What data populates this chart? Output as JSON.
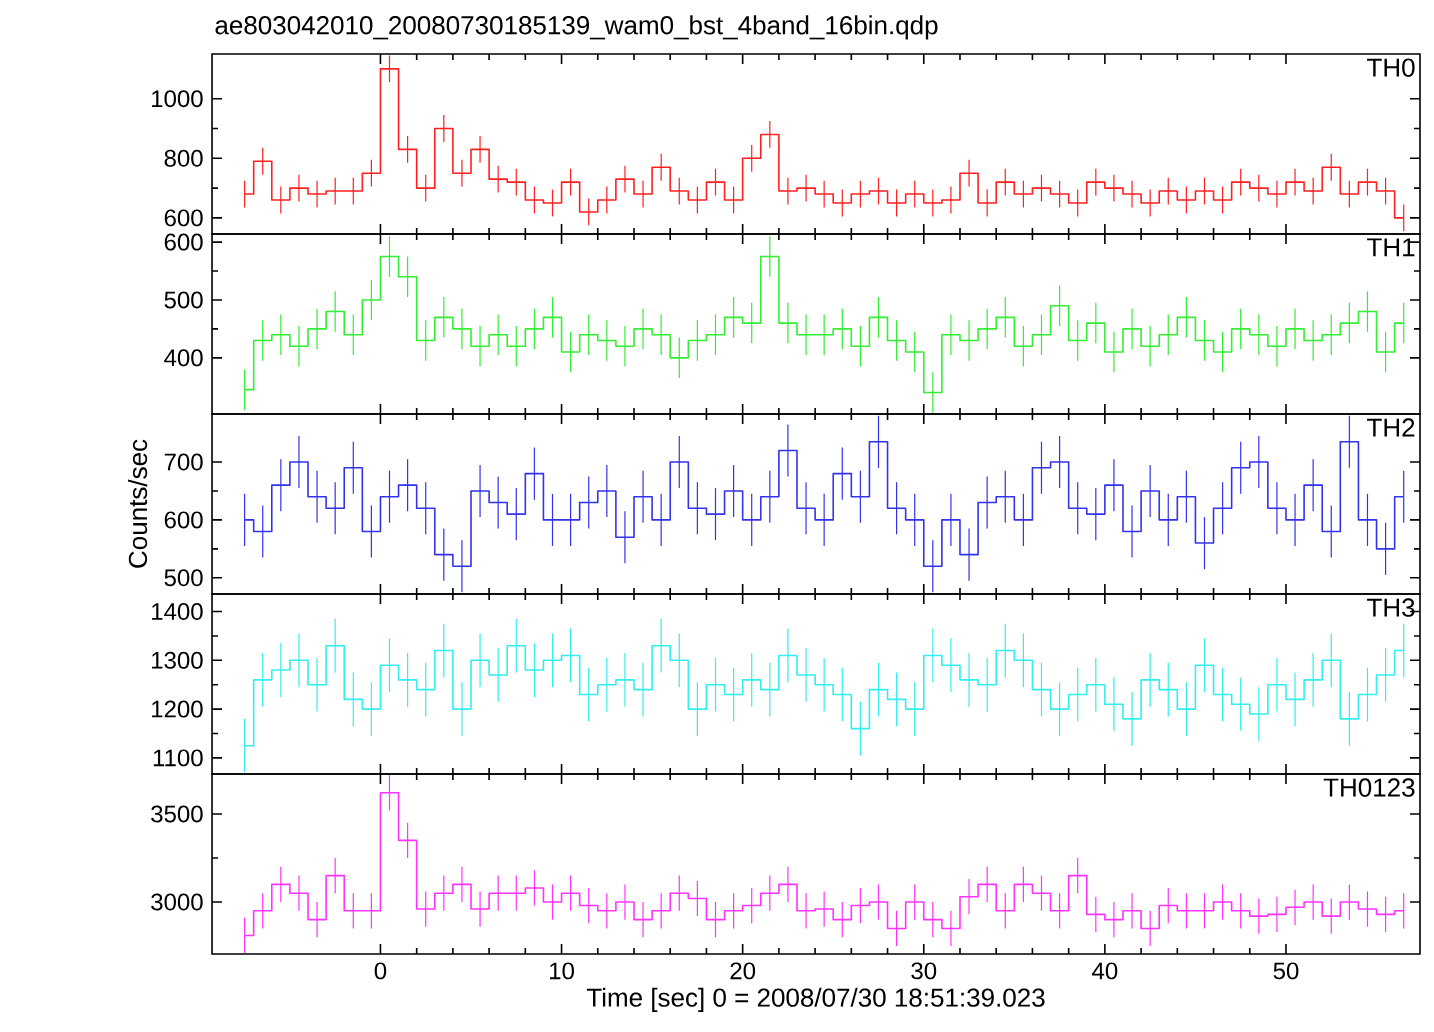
{
  "chart_data": [
    {
      "type": "step",
      "title": "ae803042010_20080730185139_wam0_bst_4band_16bin.qdp",
      "xlim": [
        -9.3,
        57.4
      ],
      "xticks": [
        0,
        10,
        20,
        30,
        40,
        50
      ],
      "ylim": [
        546,
        1150
      ],
      "yticks": [
        600,
        800,
        1000
      ],
      "tick_labels": "y",
      "x": [
        -7.5,
        -6.5,
        -5.5,
        -4.5,
        -3.5,
        -2.5,
        -1.5,
        -0.5,
        0.5,
        1.5,
        2.5,
        3.5,
        4.5,
        5.5,
        6.5,
        7.5,
        8.5,
        9.5,
        10.5,
        11.5,
        12.5,
        13.5,
        14.5,
        15.5,
        16.5,
        17.5,
        18.5,
        19.5,
        20.5,
        21.5,
        22.5,
        23.5,
        24.5,
        25.5,
        26.5,
        27.5,
        28.5,
        29.5,
        30.5,
        31.5,
        32.5,
        33.5,
        34.5,
        35.5,
        36.5,
        37.5,
        38.5,
        39.5,
        40.5,
        41.5,
        42.5,
        43.5,
        44.5,
        45.5,
        46.5,
        47.5,
        48.5,
        49.5,
        50.5,
        51.5,
        52.5,
        53.5,
        54.5,
        55.5,
        56.5
      ],
      "series": [
        {
          "name": "TH0",
          "color": "#ff2020",
          "values": [
            680,
            790,
            660,
            700,
            680,
            690,
            690,
            750,
            1100,
            830,
            700,
            900,
            750,
            830,
            730,
            720,
            660,
            650,
            720,
            620,
            660,
            730,
            680,
            770,
            690,
            660,
            720,
            660,
            800,
            880,
            690,
            700,
            680,
            650,
            680,
            690,
            650,
            680,
            650,
            660,
            750,
            650,
            720,
            680,
            700,
            680,
            650,
            720,
            700,
            680,
            650,
            690,
            660,
            690,
            660,
            720,
            700,
            680,
            720,
            690,
            770,
            680,
            720,
            690,
            600
          ],
          "errors": [
            45,
            45,
            45,
            45,
            45,
            45,
            45,
            45,
            45,
            45,
            45,
            45,
            45,
            45,
            45,
            45,
            45,
            45,
            45,
            45,
            45,
            45,
            45,
            45,
            45,
            45,
            45,
            45,
            45,
            45,
            45,
            45,
            45,
            45,
            45,
            45,
            45,
            45,
            45,
            45,
            45,
            45,
            45,
            45,
            45,
            45,
            45,
            45,
            45,
            45,
            45,
            45,
            45,
            45,
            45,
            45,
            45,
            45,
            45,
            45,
            45,
            45,
            45,
            45,
            45
          ]
        }
      ]
    },
    {
      "type": "step",
      "xlim": [
        -9.3,
        57.4
      ],
      "xticks": [
        0,
        10,
        20,
        30,
        40,
        50
      ],
      "ylim": [
        303,
        614
      ],
      "yticks": [
        400,
        500,
        600
      ],
      "tick_labels": "y",
      "x": [
        -7.5,
        -6.5,
        -5.5,
        -4.5,
        -3.5,
        -2.5,
        -1.5,
        -0.5,
        0.5,
        1.5,
        2.5,
        3.5,
        4.5,
        5.5,
        6.5,
        7.5,
        8.5,
        9.5,
        10.5,
        11.5,
        12.5,
        13.5,
        14.5,
        15.5,
        16.5,
        17.5,
        18.5,
        19.5,
        20.5,
        21.5,
        22.5,
        23.5,
        24.5,
        25.5,
        26.5,
        27.5,
        28.5,
        29.5,
        30.5,
        31.5,
        32.5,
        33.5,
        34.5,
        35.5,
        36.5,
        37.5,
        38.5,
        39.5,
        40.5,
        41.5,
        42.5,
        43.5,
        44.5,
        45.5,
        46.5,
        47.5,
        48.5,
        49.5,
        50.5,
        51.5,
        52.5,
        53.5,
        54.5,
        55.5,
        56.5
      ],
      "series": [
        {
          "name": "TH1",
          "color": "#33ee33",
          "values": [
            345,
            430,
            440,
            420,
            450,
            480,
            440,
            500,
            575,
            540,
            430,
            470,
            450,
            420,
            440,
            420,
            450,
            470,
            410,
            440,
            430,
            420,
            450,
            440,
            400,
            430,
            440,
            470,
            460,
            575,
            460,
            440,
            440,
            450,
            420,
            470,
            430,
            410,
            340,
            440,
            430,
            450,
            470,
            420,
            440,
            490,
            430,
            460,
            410,
            450,
            420,
            440,
            470,
            430,
            410,
            450,
            440,
            420,
            450,
            430,
            440,
            460,
            480,
            410,
            460
          ],
          "errors": [
            35,
            35,
            35,
            35,
            35,
            35,
            35,
            35,
            35,
            35,
            35,
            35,
            35,
            35,
            35,
            35,
            35,
            35,
            35,
            35,
            35,
            35,
            35,
            35,
            35,
            35,
            35,
            35,
            35,
            35,
            35,
            35,
            35,
            35,
            35,
            35,
            35,
            35,
            35,
            35,
            35,
            35,
            35,
            35,
            35,
            35,
            35,
            35,
            35,
            35,
            35,
            35,
            35,
            35,
            35,
            35,
            35,
            35,
            35,
            35,
            35,
            35,
            35,
            35,
            35
          ]
        }
      ]
    },
    {
      "type": "step",
      "ylabel": "Counts/sec",
      "xlim": [
        -9.3,
        57.4
      ],
      "xticks": [
        0,
        10,
        20,
        30,
        40,
        50
      ],
      "ylim": [
        472,
        783
      ],
      "yticks": [
        500,
        600,
        700
      ],
      "tick_labels": "y",
      "x": [
        -7.5,
        -6.5,
        -5.5,
        -4.5,
        -3.5,
        -2.5,
        -1.5,
        -0.5,
        0.5,
        1.5,
        2.5,
        3.5,
        4.5,
        5.5,
        6.5,
        7.5,
        8.5,
        9.5,
        10.5,
        11.5,
        12.5,
        13.5,
        14.5,
        15.5,
        16.5,
        17.5,
        18.5,
        19.5,
        20.5,
        21.5,
        22.5,
        23.5,
        24.5,
        25.5,
        26.5,
        27.5,
        28.5,
        29.5,
        30.5,
        31.5,
        32.5,
        33.5,
        34.5,
        35.5,
        36.5,
        37.5,
        38.5,
        39.5,
        40.5,
        41.5,
        42.5,
        43.5,
        44.5,
        45.5,
        46.5,
        47.5,
        48.5,
        49.5,
        50.5,
        51.5,
        52.5,
        53.5,
        54.5,
        55.5,
        56.5
      ],
      "series": [
        {
          "name": "TH2",
          "color": "#3333ee",
          "values": [
            600,
            580,
            660,
            700,
            640,
            620,
            690,
            580,
            640,
            660,
            620,
            540,
            520,
            650,
            630,
            610,
            680,
            600,
            600,
            630,
            650,
            570,
            640,
            600,
            700,
            620,
            610,
            650,
            600,
            640,
            720,
            620,
            600,
            680,
            640,
            735,
            620,
            600,
            520,
            600,
            540,
            630,
            640,
            600,
            690,
            700,
            620,
            610,
            660,
            580,
            650,
            600,
            640,
            560,
            620,
            690,
            700,
            620,
            600,
            660,
            580,
            735,
            600,
            550,
            640
          ],
          "errors": [
            45,
            45,
            45,
            45,
            45,
            45,
            45,
            45,
            45,
            45,
            45,
            45,
            45,
            45,
            45,
            45,
            45,
            45,
            45,
            45,
            45,
            45,
            45,
            45,
            45,
            45,
            45,
            45,
            45,
            45,
            45,
            45,
            45,
            45,
            45,
            45,
            45,
            45,
            45,
            45,
            45,
            45,
            45,
            45,
            45,
            45,
            45,
            45,
            45,
            45,
            45,
            45,
            45,
            45,
            45,
            45,
            45,
            45,
            45,
            45,
            45,
            45,
            45,
            45,
            45
          ]
        }
      ]
    },
    {
      "type": "step",
      "xlim": [
        -9.3,
        57.4
      ],
      "xticks": [
        0,
        10,
        20,
        30,
        40,
        50
      ],
      "ylim": [
        1067,
        1436
      ],
      "yticks": [
        1100,
        1200,
        1300,
        1400
      ],
      "tick_labels": "y",
      "x": [
        -7.5,
        -6.5,
        -5.5,
        -4.5,
        -3.5,
        -2.5,
        -1.5,
        -0.5,
        0.5,
        1.5,
        2.5,
        3.5,
        4.5,
        5.5,
        6.5,
        7.5,
        8.5,
        9.5,
        10.5,
        11.5,
        12.5,
        13.5,
        14.5,
        15.5,
        16.5,
        17.5,
        18.5,
        19.5,
        20.5,
        21.5,
        22.5,
        23.5,
        24.5,
        25.5,
        26.5,
        27.5,
        28.5,
        29.5,
        30.5,
        31.5,
        32.5,
        33.5,
        34.5,
        35.5,
        36.5,
        37.5,
        38.5,
        39.5,
        40.5,
        41.5,
        42.5,
        43.5,
        44.5,
        45.5,
        46.5,
        47.5,
        48.5,
        49.5,
        50.5,
        51.5,
        52.5,
        53.5,
        54.5,
        55.5,
        56.5
      ],
      "series": [
        {
          "name": "TH3",
          "color": "#33eeee",
          "values": [
            1125,
            1260,
            1280,
            1300,
            1250,
            1330,
            1220,
            1200,
            1290,
            1260,
            1240,
            1320,
            1200,
            1300,
            1270,
            1330,
            1280,
            1300,
            1310,
            1230,
            1250,
            1260,
            1240,
            1330,
            1300,
            1200,
            1250,
            1230,
            1260,
            1240,
            1310,
            1270,
            1250,
            1230,
            1160,
            1240,
            1220,
            1200,
            1310,
            1290,
            1260,
            1250,
            1320,
            1300,
            1240,
            1200,
            1230,
            1250,
            1210,
            1180,
            1260,
            1240,
            1200,
            1290,
            1230,
            1210,
            1190,
            1250,
            1220,
            1260,
            1300,
            1180,
            1230,
            1270,
            1320
          ],
          "errors": [
            55,
            55,
            55,
            55,
            55,
            55,
            55,
            55,
            55,
            55,
            55,
            55,
            55,
            55,
            55,
            55,
            55,
            55,
            55,
            55,
            55,
            55,
            55,
            55,
            55,
            55,
            55,
            55,
            55,
            55,
            55,
            55,
            55,
            55,
            55,
            55,
            55,
            55,
            55,
            55,
            55,
            55,
            55,
            55,
            55,
            55,
            55,
            55,
            55,
            55,
            55,
            55,
            55,
            55,
            55,
            55,
            55,
            55,
            55,
            55,
            55,
            55,
            55,
            55,
            55
          ]
        }
      ]
    },
    {
      "type": "step",
      "xlabel": "Time [sec] 0 = 2008/07/30 18:51:39.023",
      "xlim": [
        -9.3,
        57.4
      ],
      "xticks": [
        0,
        10,
        20,
        30,
        40,
        50
      ],
      "ylim": [
        2705,
        3727
      ],
      "yticks": [
        3000,
        3500
      ],
      "x": [
        -7.5,
        -6.5,
        -5.5,
        -4.5,
        -3.5,
        -2.5,
        -1.5,
        -0.5,
        0.5,
        1.5,
        2.5,
        3.5,
        4.5,
        5.5,
        6.5,
        7.5,
        8.5,
        9.5,
        10.5,
        11.5,
        12.5,
        13.5,
        14.5,
        15.5,
        16.5,
        17.5,
        18.5,
        19.5,
        20.5,
        21.5,
        22.5,
        23.5,
        24.5,
        25.5,
        26.5,
        27.5,
        28.5,
        29.5,
        30.5,
        31.5,
        32.5,
        33.5,
        34.5,
        35.5,
        36.5,
        37.5,
        38.5,
        39.5,
        40.5,
        41.5,
        42.5,
        43.5,
        44.5,
        45.5,
        46.5,
        47.5,
        48.5,
        49.5,
        50.5,
        51.5,
        52.5,
        53.5,
        54.5,
        55.5,
        56.5
      ],
      "series": [
        {
          "name": "TH0123",
          "color": "#ff33ff",
          "values": [
            2810,
            2950,
            3100,
            3050,
            2900,
            3150,
            2950,
            2950,
            3620,
            3350,
            2960,
            3050,
            3100,
            2960,
            3050,
            3050,
            3080,
            3000,
            3050,
            2980,
            2950,
            3000,
            2900,
            2950,
            3050,
            3020,
            2900,
            2950,
            2980,
            3050,
            3100,
            2950,
            2960,
            2900,
            2980,
            3000,
            2850,
            3000,
            2900,
            2850,
            3030,
            3100,
            2950,
            3100,
            3050,
            2950,
            3150,
            2930,
            2900,
            2950,
            2850,
            2980,
            2950,
            2950,
            3000,
            2950,
            2920,
            2930,
            2970,
            3000,
            2920,
            3000,
            2960,
            2930,
            2950
          ],
          "errors": [
            100,
            100,
            100,
            100,
            100,
            100,
            100,
            100,
            100,
            100,
            100,
            100,
            100,
            100,
            100,
            100,
            100,
            100,
            100,
            100,
            100,
            100,
            100,
            100,
            100,
            100,
            100,
            100,
            100,
            100,
            100,
            100,
            100,
            100,
            100,
            100,
            100,
            100,
            100,
            100,
            100,
            100,
            100,
            100,
            100,
            100,
            100,
            100,
            100,
            100,
            100,
            100,
            100,
            100,
            100,
            100,
            100,
            100,
            100,
            100,
            100,
            100,
            100,
            100,
            100
          ]
        }
      ]
    }
  ]
}
